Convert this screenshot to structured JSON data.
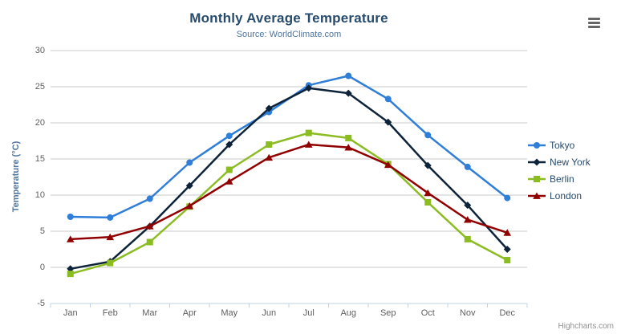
{
  "chart_data": {
    "type": "line",
    "title": "Monthly Average Temperature",
    "subtitle": "Source: WorldClimate.com",
    "xlabel": "",
    "ylabel": "Temperature (°C)",
    "ylim": [
      -5,
      30
    ],
    "ytick_step": 5,
    "grid": true,
    "legend_position": "right",
    "categories": [
      "Jan",
      "Feb",
      "Mar",
      "Apr",
      "May",
      "Jun",
      "Jul",
      "Aug",
      "Sep",
      "Oct",
      "Nov",
      "Dec"
    ],
    "series": [
      {
        "name": "Tokyo",
        "color": "#2f7ed8",
        "marker": "circle",
        "values": [
          7.0,
          6.9,
          9.5,
          14.5,
          18.2,
          21.5,
          25.2,
          26.5,
          23.3,
          18.3,
          13.9,
          9.6
        ]
      },
      {
        "name": "New York",
        "color": "#0d233a",
        "marker": "diamond",
        "values": [
          -0.2,
          0.8,
          5.7,
          11.3,
          17.0,
          22.0,
          24.8,
          24.1,
          20.1,
          14.1,
          8.6,
          2.5
        ]
      },
      {
        "name": "Berlin",
        "color": "#8bbc21",
        "marker": "square",
        "values": [
          -0.9,
          0.6,
          3.5,
          8.4,
          13.5,
          17.0,
          18.6,
          17.9,
          14.3,
          9.0,
          3.9,
          1.0
        ]
      },
      {
        "name": "London",
        "color": "#910000",
        "marker": "triangle",
        "values": [
          3.9,
          4.2,
          5.7,
          8.5,
          11.9,
          15.2,
          17.0,
          16.6,
          14.2,
          10.3,
          6.6,
          4.8
        ]
      }
    ]
  },
  "palette": {
    "grid": "#c8c8c8",
    "axis_line": "#c0d0e0",
    "tick_label": "#606060",
    "title": "#274b6d",
    "subtitle": "#4d759e",
    "axis_title": "#4d759e",
    "legend_text": "#274b6d",
    "menu_icon": "#666666",
    "credits_text": "#909090"
  },
  "credits": "Highcharts.com"
}
